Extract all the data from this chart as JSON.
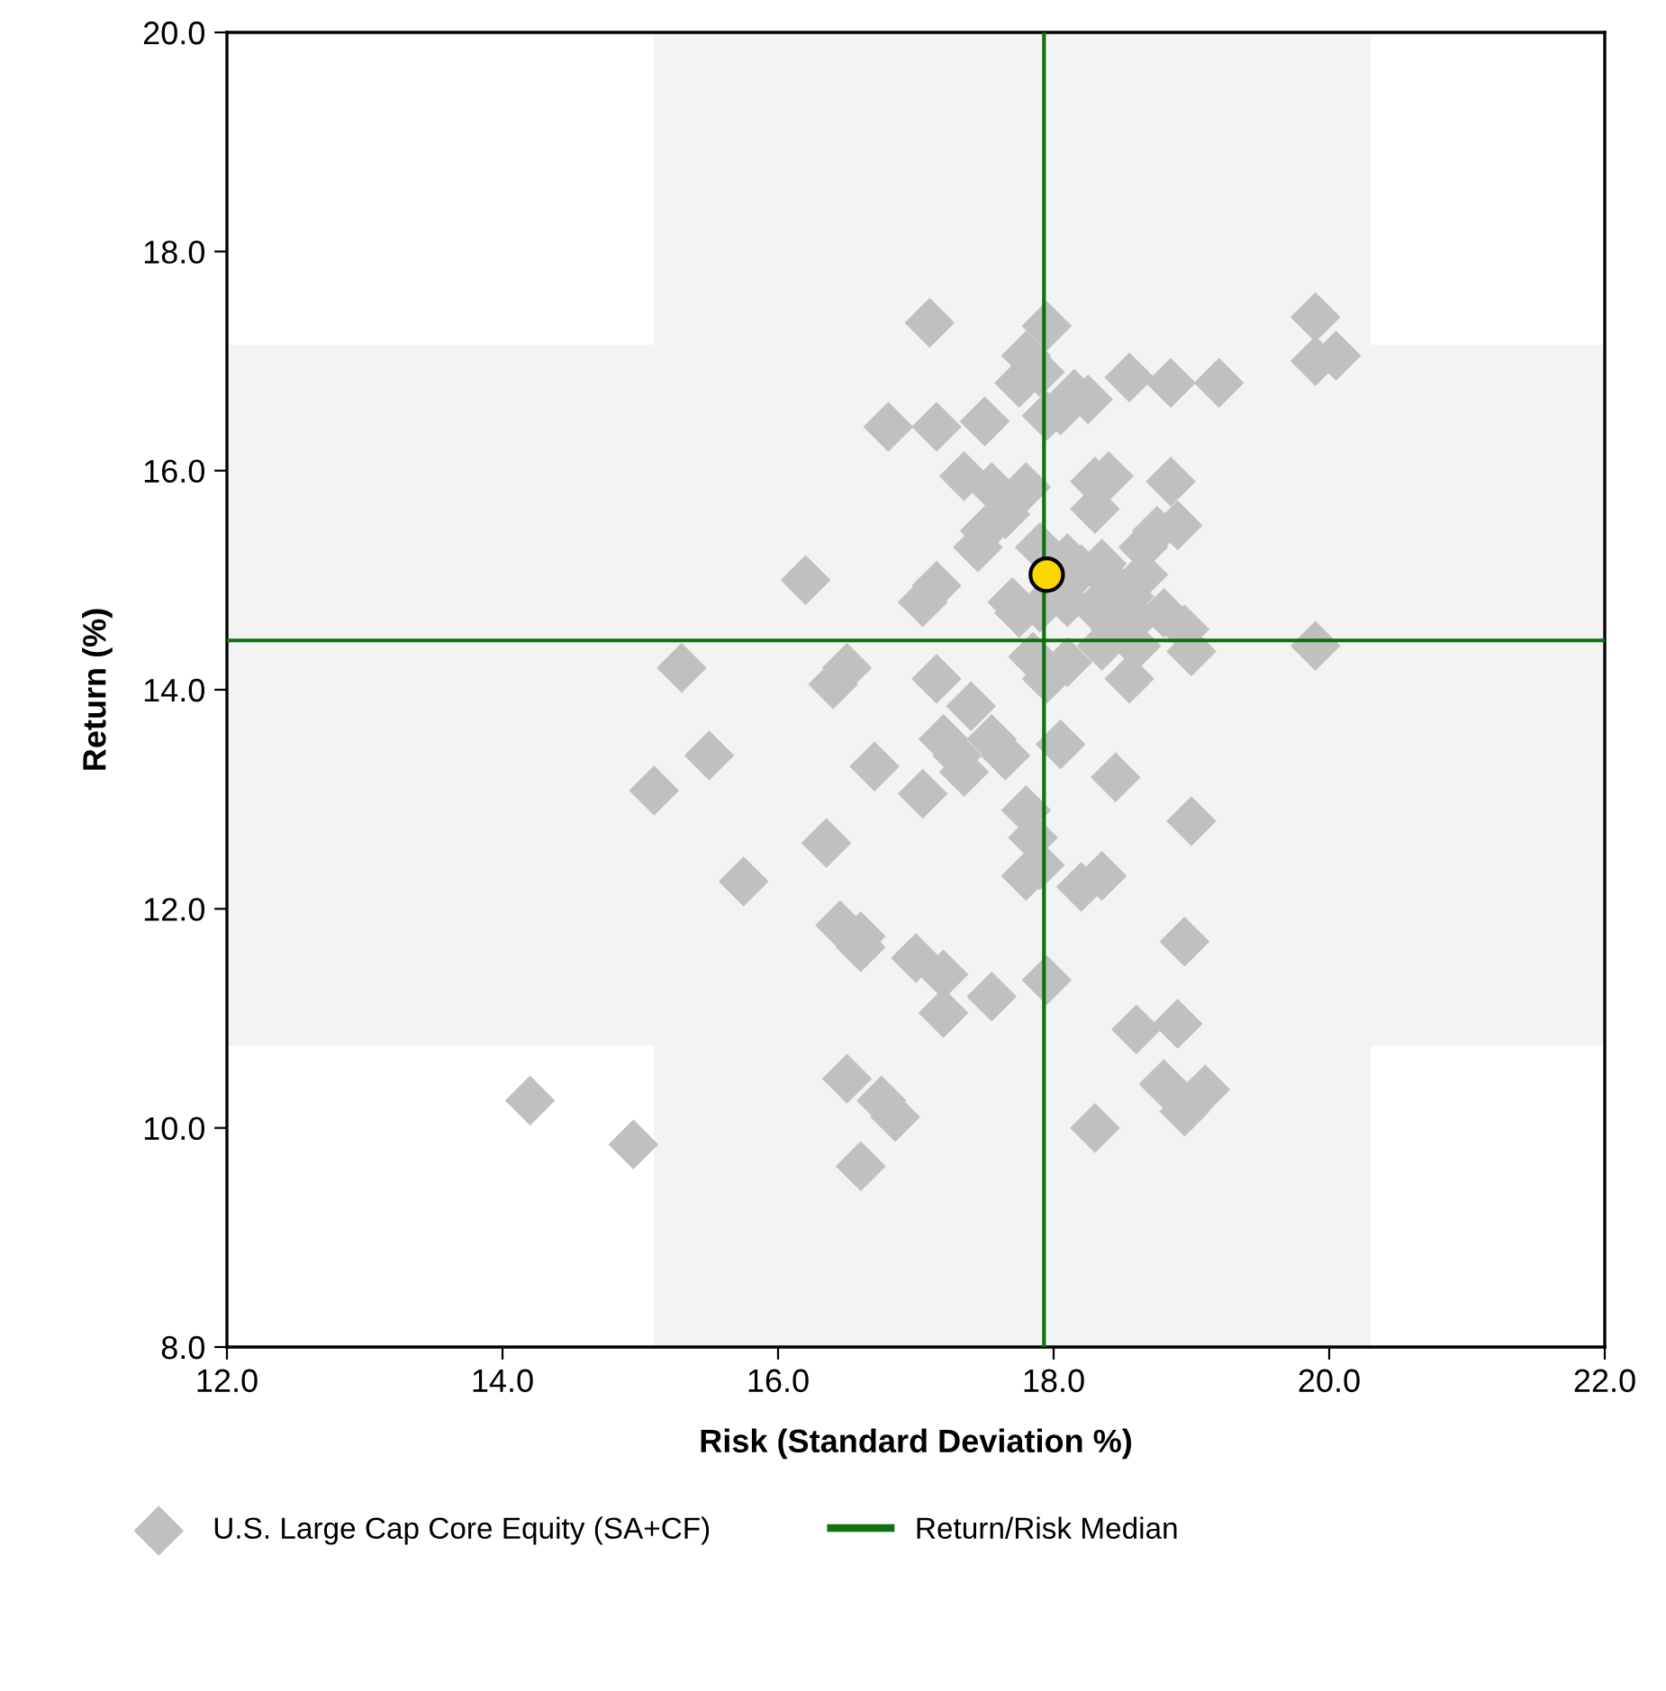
{
  "chart_data": {
    "type": "scatter",
    "xlabel": "Risk (Standard Deviation %)",
    "ylabel": "Return (%)",
    "xlim": [
      12,
      22
    ],
    "ylim": [
      8,
      20
    ],
    "xticks": [
      {
        "value": 12,
        "label": "12.0"
      },
      {
        "value": 14,
        "label": "14.0"
      },
      {
        "value": 16,
        "label": "16.0"
      },
      {
        "value": 18,
        "label": "18.0"
      },
      {
        "value": 20,
        "label": "20.0"
      },
      {
        "value": 22,
        "label": "22.0"
      }
    ],
    "yticks": [
      {
        "value": 8,
        "label": "8.0"
      },
      {
        "value": 10,
        "label": "10.0"
      },
      {
        "value": 12,
        "label": "12.0"
      },
      {
        "value": 14,
        "label": "14.0"
      },
      {
        "value": 16,
        "label": "16.0"
      },
      {
        "value": 18,
        "label": "18.0"
      },
      {
        "value": 20,
        "label": "20.0"
      }
    ],
    "grid": false,
    "legend": "bottom",
    "bands": [
      {
        "axis": "x",
        "from": 15.1,
        "to": 20.3,
        "color": "#f3f3f3"
      },
      {
        "axis": "y",
        "from": 10.75,
        "to": 17.15,
        "color": "#f3f3f3"
      }
    ],
    "ref_lines": [
      {
        "axis": "y",
        "value": 14.45,
        "label": "Return/Risk Median",
        "color": "#127012"
      },
      {
        "axis": "x",
        "value": 17.93,
        "color": "#127012"
      }
    ],
    "series": [
      {
        "name": "U.S. Large Cap Core Equity (SA+CF)",
        "color": "#c0c0c0",
        "marker": "diamond",
        "x": [
          17.1,
          17.95,
          17.8,
          17.75,
          17.9,
          18.05,
          18.15,
          18.25,
          17.95,
          18.55,
          18.85,
          19.2,
          19.9,
          19.9,
          20.05,
          16.8,
          17.15,
          17.5,
          17.35,
          17.55,
          17.8,
          17.65,
          17.5,
          17.45,
          18.3,
          18.4,
          18.3,
          18.85,
          18.65,
          18.75,
          18.9,
          18.65,
          18.35,
          18.4,
          18.55,
          18.1,
          18.2,
          17.9,
          17.7,
          17.75,
          17.9,
          18.1,
          18.3,
          18.45,
          18.6,
          18.8,
          18.95,
          19.0,
          18.6,
          18.35,
          17.85,
          17.95,
          18.1,
          18.55,
          19.9,
          17.05,
          17.15,
          16.2,
          15.3,
          15.5,
          15.1,
          16.4,
          16.5,
          17.15,
          17.4,
          17.2,
          17.3,
          17.35,
          17.55,
          17.65,
          16.7,
          17.05,
          18.05,
          17.8,
          17.85,
          17.8,
          17.9,
          18.2,
          18.35,
          18.45,
          19.0,
          16.35,
          15.75,
          16.45,
          16.6,
          16.6,
          17.0,
          17.2,
          17.2,
          17.55,
          17.95,
          18.95,
          18.6,
          18.9,
          18.8,
          19.1,
          18.95,
          18.3,
          16.5,
          16.75,
          16.85,
          16.6,
          14.2,
          14.95
        ],
        "values": [
          17.35,
          17.32,
          17.05,
          16.8,
          16.9,
          16.55,
          16.7,
          16.65,
          16.5,
          16.85,
          16.8,
          16.8,
          17.4,
          17.0,
          17.05,
          16.4,
          16.4,
          16.45,
          15.95,
          15.85,
          15.85,
          15.6,
          15.45,
          15.3,
          15.9,
          15.95,
          15.65,
          15.9,
          15.3,
          15.45,
          15.5,
          15.05,
          15.15,
          15.0,
          14.85,
          15.2,
          15.1,
          15.3,
          14.8,
          14.7,
          14.75,
          14.8,
          14.75,
          14.55,
          14.65,
          14.7,
          14.55,
          14.35,
          14.4,
          14.4,
          14.3,
          14.1,
          14.25,
          14.1,
          14.4,
          14.8,
          14.95,
          15.0,
          14.2,
          13.4,
          13.08,
          14.05,
          14.2,
          14.1,
          13.85,
          13.55,
          13.4,
          13.25,
          13.55,
          13.4,
          13.3,
          13.05,
          13.5,
          12.9,
          12.65,
          12.3,
          12.4,
          12.2,
          12.3,
          13.2,
          12.8,
          12.6,
          12.25,
          11.85,
          11.75,
          11.65,
          11.55,
          11.4,
          11.05,
          11.2,
          11.35,
          11.7,
          10.9,
          10.95,
          10.4,
          10.35,
          10.15,
          10.0,
          10.45,
          10.25,
          10.1,
          9.65,
          10.25,
          9.85
        ]
      },
      {
        "color": "#ffd700",
        "marker": "circle",
        "x": [
          17.95
        ],
        "values": [
          15.05
        ]
      }
    ]
  }
}
